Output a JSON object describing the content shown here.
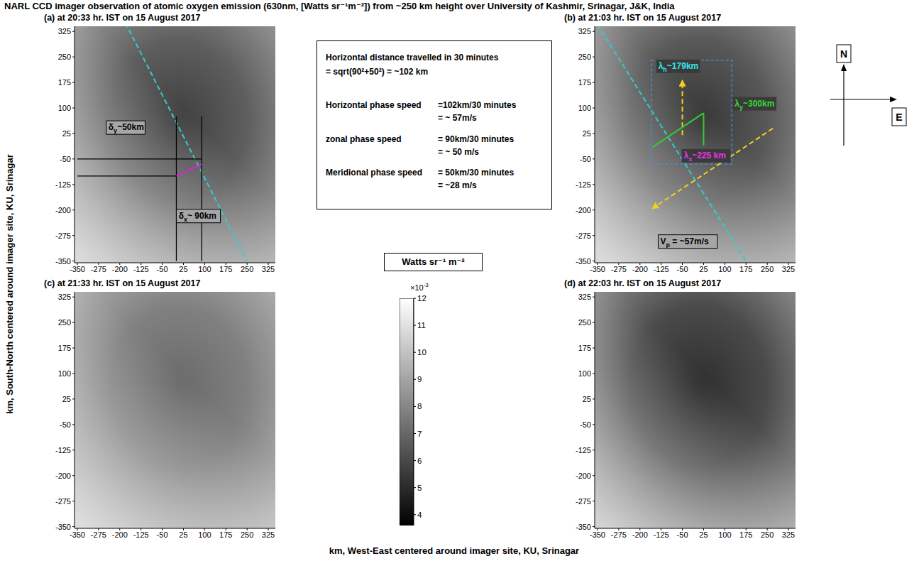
{
  "title": "NARL CCD imager observation of atomic oxygen emission (630nm, [Watts sr⁻¹m⁻²]) from ~250 km height over University of Kashmir, Srinagar, J&K, India",
  "x_label": "km, West-East centered around imager site, KU, Srinagar",
  "y_label": "km, South-North centered around imager site, KU, Srinagar",
  "chart_data": [
    {
      "type": "image",
      "title": "(a) at 20:33 hr. IST on 15 August 2017",
      "xlim": [
        -360,
        350
      ],
      "ylim": [
        -355,
        340
      ],
      "xticks": [
        -350,
        -275,
        -200,
        -125,
        -50,
        25,
        100,
        175,
        250,
        325
      ],
      "yticks": [
        -350,
        -275,
        -200,
        -125,
        -50,
        25,
        100,
        175,
        250,
        325
      ],
      "annotations": [
        {
          "kind": "line",
          "x": [
            -180,
            250
          ],
          "y": [
            350,
            -350
          ],
          "color": "#33cccc",
          "line_style": "dashed"
        },
        {
          "kind": "line",
          "x": [
            0,
            0
          ],
          "y": [
            75,
            -350
          ],
          "color": "#000000",
          "line_style": "solid"
        },
        {
          "kind": "line",
          "x": [
            90,
            90
          ],
          "y": [
            75,
            -350
          ],
          "color": "#000000",
          "line_style": "solid"
        },
        {
          "kind": "line",
          "x": [
            -350,
            90
          ],
          "y": [
            -50,
            -50
          ],
          "color": "#000000",
          "line_style": "solid"
        },
        {
          "kind": "line",
          "x": [
            -350,
            0
          ],
          "y": [
            -100,
            -100
          ],
          "color": "#000000",
          "line_style": "solid"
        },
        {
          "kind": "line",
          "x": [
            0,
            90
          ],
          "y": [
            -100,
            -65
          ],
          "color": "#e020e0",
          "line_style": "solid"
        },
        {
          "kind": "text",
          "base": "δ",
          "sub": "y",
          "rest": "~50km",
          "x": -240,
          "y": 35,
          "color": "#000000"
        },
        {
          "kind": "text",
          "base": "δ",
          "sub": "x",
          "rest": "~ 90km",
          "x": 8,
          "y": -225,
          "color": "#000000"
        }
      ]
    },
    {
      "type": "image",
      "title": "(b) at 21:03 hr. IST on 15 August 2017",
      "xlim": [
        -360,
        350
      ],
      "ylim": [
        -355,
        340
      ],
      "xticks": [
        -350,
        -275,
        -200,
        -125,
        -50,
        25,
        100,
        175,
        250,
        325
      ],
      "yticks": [
        -350,
        -275,
        -200,
        -125,
        -50,
        25,
        100,
        175,
        250,
        325
      ],
      "annotations": [
        {
          "kind": "line",
          "x": [
            -350,
            175
          ],
          "y": [
            345,
            -350
          ],
          "color": "#33cccc",
          "line_style": "dashed"
        },
        {
          "kind": "rect",
          "x": [
            -160,
            125
          ],
          "y": [
            -65,
            240
          ],
          "color": "#4a90e2",
          "line_style": "dashed"
        },
        {
          "kind": "line",
          "x": [
            270,
            -155
          ],
          "y": [
            40,
            -195
          ],
          "color": "#f0d020",
          "line_style": "dashed",
          "marker": "arrow"
        },
        {
          "kind": "line",
          "x": [
            -50,
            -50
          ],
          "y": [
            20,
            180
          ],
          "color": "#f0d020",
          "line_style": "dashed",
          "marker": "arrow"
        },
        {
          "kind": "line",
          "x": [
            -155,
            25
          ],
          "y": [
            -15,
            85
          ],
          "color": "#33cc33",
          "line_style": "solid"
        },
        {
          "kind": "line",
          "x": [
            25,
            25
          ],
          "y": [
            85,
            -10
          ],
          "color": "#33cc33",
          "line_style": "solid"
        },
        {
          "kind": "text",
          "base": "λ",
          "sub": "h",
          "rest": "~179km",
          "x": -135,
          "y": 215,
          "color": "#33e6e6"
        },
        {
          "kind": "text",
          "base": "λ",
          "sub": "y",
          "rest": "~300km",
          "x": 135,
          "y": 105,
          "color": "#33dd33"
        },
        {
          "kind": "text",
          "base": "λ",
          "sub": "x",
          "rest": "~225 km",
          "x": -45,
          "y": -48,
          "color": "#ee33ee"
        },
        {
          "kind": "text",
          "base": "V",
          "sub": "p",
          "rest": " = ~57m/s",
          "x": -128,
          "y": -300,
          "color": "#000000"
        }
      ]
    },
    {
      "type": "image",
      "title": "(c) at 21:33 hr. IST on 15 August 2017",
      "xlim": [
        -360,
        350
      ],
      "ylim": [
        -355,
        340
      ],
      "xticks": [
        -350,
        -275,
        -200,
        -125,
        -50,
        25,
        100,
        175,
        250,
        325
      ],
      "yticks": [
        -350,
        -275,
        -200,
        -125,
        -50,
        25,
        100,
        175,
        250,
        325
      ],
      "annotations": []
    },
    {
      "type": "image",
      "title": "(d) at 22:03 hr. IST on 15 August 2017",
      "xlim": [
        -360,
        350
      ],
      "ylim": [
        -355,
        340
      ],
      "xticks": [
        -350,
        -275,
        -200,
        -125,
        -50,
        25,
        100,
        175,
        250,
        325
      ],
      "yticks": [
        -350,
        -275,
        -200,
        -125,
        -50,
        25,
        100,
        175,
        250,
        325
      ],
      "annotations": []
    }
  ],
  "colorbar": {
    "label": "Watts sr⁻¹ m⁻²",
    "range": [
      0.0036,
      0.012
    ],
    "ticks": [
      {
        "value": 0.004,
        "label": "4"
      },
      {
        "value": 0.005,
        "label": "5"
      },
      {
        "value": 0.006,
        "label": "6"
      },
      {
        "value": 0.007,
        "label": "7"
      },
      {
        "value": 0.008,
        "label": "8"
      },
      {
        "value": 0.009,
        "label": "9"
      },
      {
        "value": 0.01,
        "label": "10"
      },
      {
        "value": 0.011,
        "label": "11"
      },
      {
        "value": 0.012,
        "label": "12"
      }
    ],
    "offset_text": {
      "base": "×10",
      "exponent": "-3"
    }
  },
  "text_box": {
    "rows": [
      {
        "label": "Horizontal distance travelled in 30 minutes",
        "lines": [
          "= sqrt(90²+50²) = ~102 km"
        ]
      },
      {
        "label": "Horizontal phase speed",
        "lines": [
          "=102km/30 minutes",
          "= ~ 57m/s"
        ]
      },
      {
        "label": "zonal phase speed",
        "lines": [
          "= 90km/30 minutes",
          "= ~ 50 m/s"
        ]
      },
      {
        "label": "Meridional phase speed",
        "lines": [
          "= 50km/30 minutes",
          "= ~28 m/s"
        ]
      }
    ]
  },
  "compass": {
    "north": "N",
    "east": "E"
  }
}
